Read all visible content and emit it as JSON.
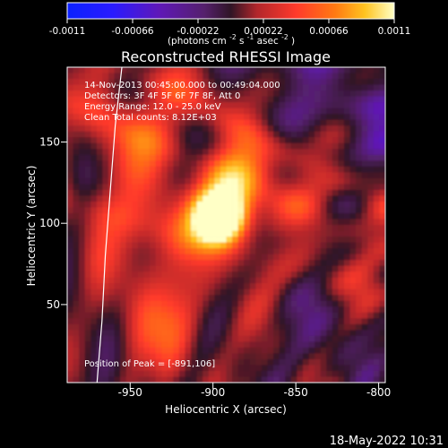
{
  "chart_data": {
    "type": "heatmap",
    "title": "Reconstructed RHESSI Image",
    "xlabel": "Heliocentric X (arcsec)",
    "ylabel": "Heliocentric Y (arcsec)",
    "xlim": [
      -988,
      -796
    ],
    "ylim": [
      2,
      196
    ],
    "x_ticks": [
      -950,
      -900,
      -850,
      -800
    ],
    "y_ticks": [
      50,
      100,
      150
    ],
    "annotations": [
      "14-Nov-2013 00:45:00.000 to 00:49:04.000",
      "Detectors: 3F 4F 5F 6F 7F 8F, Att 0",
      "Energy Range: 12.0 - 25.0 keV",
      "Clean    Total counts: 8.12E+03"
    ],
    "peak_label": "Position of Peak = [-891,106]",
    "peak_position": [
      -891,
      106
    ],
    "colorbar": {
      "range": [
        -0.0011,
        0.0011
      ],
      "ticks": [
        "-0.0011",
        "-0.00066",
        "-0.00022",
        "0.00022",
        "0.00066",
        "0.0011"
      ],
      "unit_prefix": "(photons cm",
      "unit_sup1": "-2",
      "unit_mid": " s",
      "unit_sup2": "-1",
      "unit_end": " asec",
      "unit_sup3": "-2",
      "unit_close": ")"
    },
    "colors": {
      "deep_blue": "#0b21ff",
      "violet": "#5f18b8",
      "purple": "#55206c",
      "dark_red": "#b2262b",
      "red": "#ff3a2b",
      "orange": "#ff7a12",
      "yellow": "#ffc320",
      "white_yellow": "#ffffc6"
    },
    "limb_curve": [
      [
        -970,
        2
      ],
      [
        -967,
        40
      ],
      [
        -965,
        80
      ],
      [
        -962,
        120
      ],
      [
        -959,
        160
      ],
      [
        -955,
        196
      ]
    ]
  },
  "footer": {
    "timestamp": "18-May-2022 10:31"
  }
}
